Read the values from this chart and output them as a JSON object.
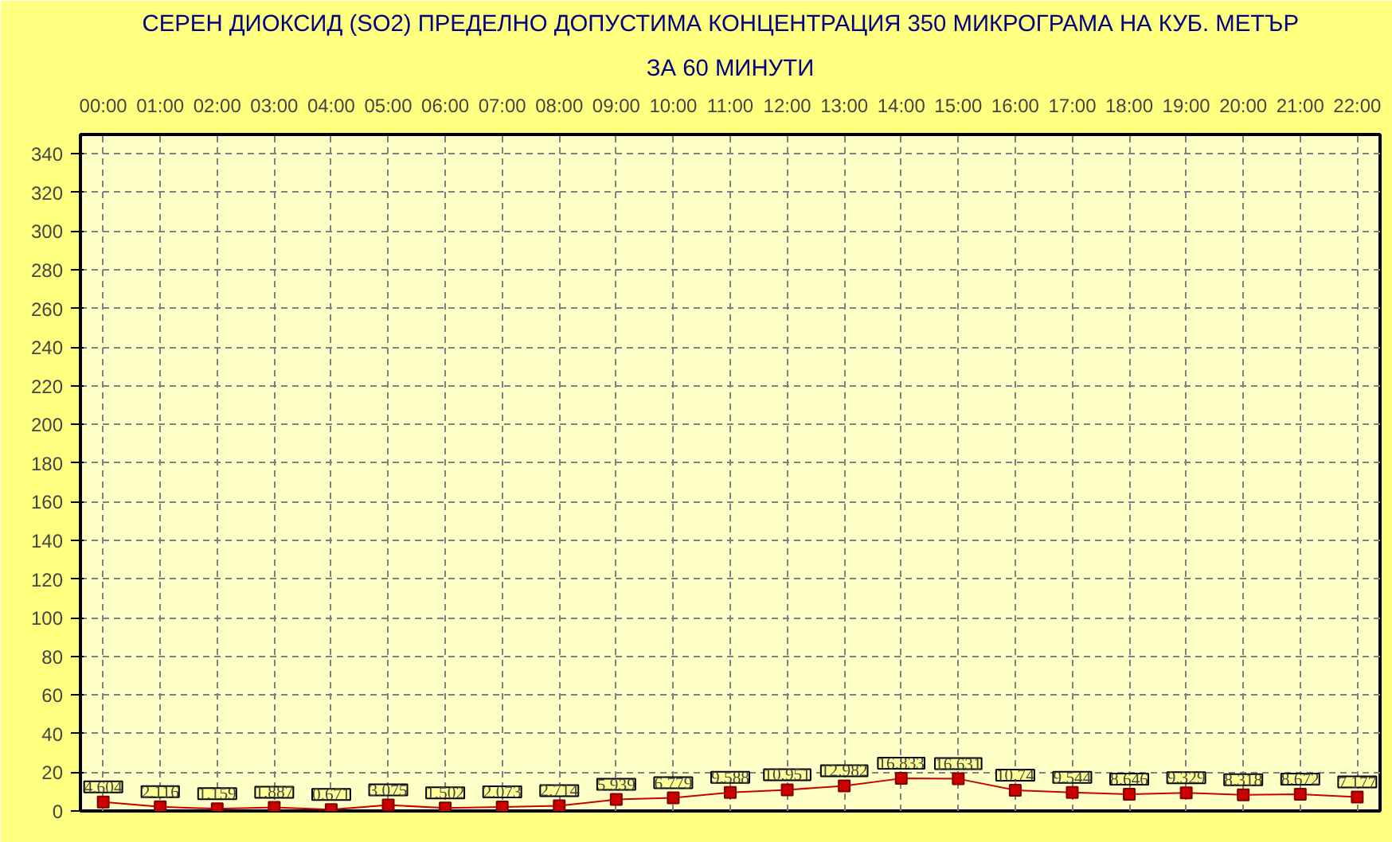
{
  "chart_data": {
    "type": "line",
    "title": "СЕРЕН ДИОКСИД  (SO2)  ПРЕДЕЛНО ДОПУСТИМА КОНЦЕНТРАЦИЯ 350 МИКРОГРАМА  НА КУБ. МЕТЪР",
    "subtitle": "ЗА 60 МИНУТИ",
    "categories": [
      "00:00",
      "01:00",
      "02:00",
      "03:00",
      "04:00",
      "05:00",
      "06:00",
      "07:00",
      "08:00",
      "09:00",
      "10:00",
      "11:00",
      "12:00",
      "13:00",
      "14:00",
      "15:00",
      "16:00",
      "17:00",
      "18:00",
      "19:00",
      "20:00",
      "21:00",
      "22:00"
    ],
    "series": [
      {
        "color": "#cc0000",
        "values": [
          4.604,
          2.116,
          1.159,
          1.887,
          0.671,
          3.075,
          1.502,
          2.073,
          2.714,
          5.939,
          6.779,
          9.588,
          10.951,
          12.982,
          16.833,
          16.631,
          10.74,
          9.544,
          8.646,
          9.329,
          8.318,
          8.672,
          7.177
        ]
      }
    ],
    "ylim": [
      0,
      350
    ],
    "yticks": [
      0,
      20,
      40,
      60,
      80,
      100,
      120,
      140,
      160,
      180,
      200,
      220,
      240,
      260,
      280,
      300,
      320,
      340
    ],
    "grid": true,
    "marker": "square",
    "line_style": "solid",
    "data_labels": true
  }
}
